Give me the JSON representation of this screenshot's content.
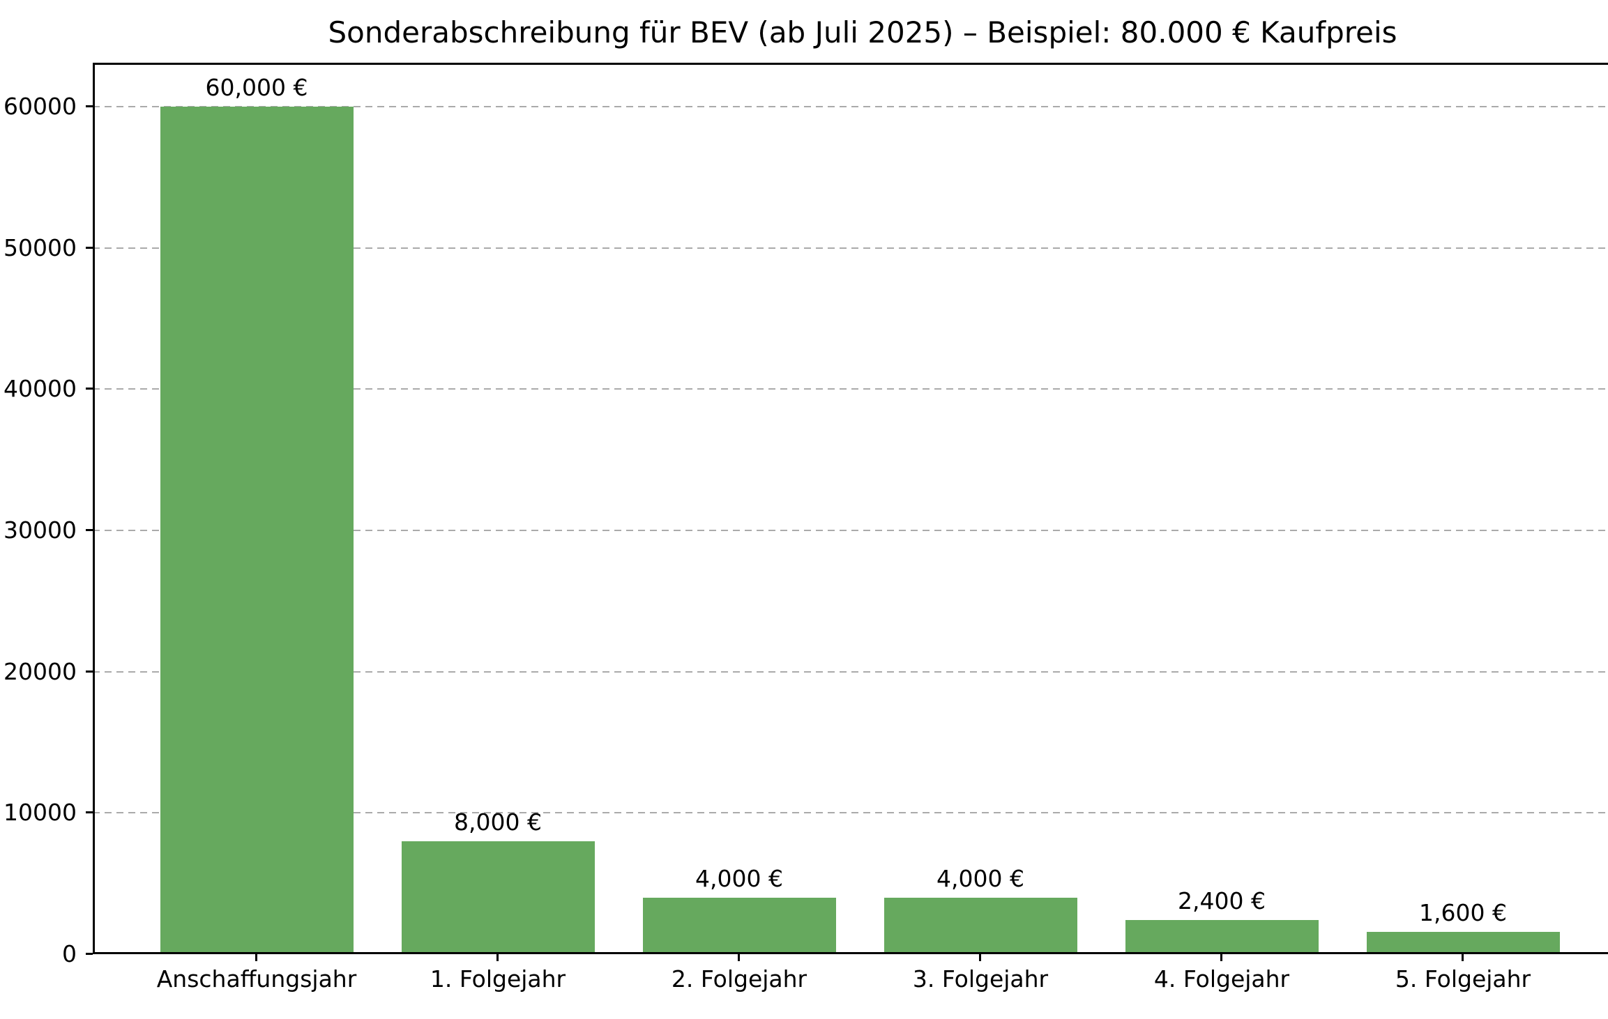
{
  "chart_data": {
    "type": "bar",
    "title": "Sonderabschreibung für BEV (ab Juli 2025) – Beispiel: 80.000 € Kaufpreis",
    "xlabel": "",
    "ylabel": "",
    "categories": [
      "Anschaffungsjahr",
      "1. Folgejahr",
      "2. Folgejahr",
      "3. Folgejahr",
      "4. Folgejahr",
      "5. Folgejahr"
    ],
    "values": [
      60000,
      8000,
      4000,
      4000,
      2400,
      1600
    ],
    "bar_labels": [
      "60,000 €",
      "8,000 €",
      "4,000 €",
      "4,000 €",
      "2,400 €",
      "1,600 €"
    ],
    "yticks": [
      0,
      10000,
      20000,
      30000,
      40000,
      50000,
      60000
    ],
    "ytick_labels": [
      "0",
      "10000",
      "20000",
      "30000",
      "40000",
      "50000",
      "60000"
    ],
    "ylim": [
      0,
      63100
    ],
    "grid": "horizontal-dashed",
    "legend": "none",
    "bar_color": "#66a95e",
    "grid_color": "#aaaaaa",
    "axis_color": "#000000",
    "text_color": "#000000",
    "background_color": "#ffffff"
  }
}
